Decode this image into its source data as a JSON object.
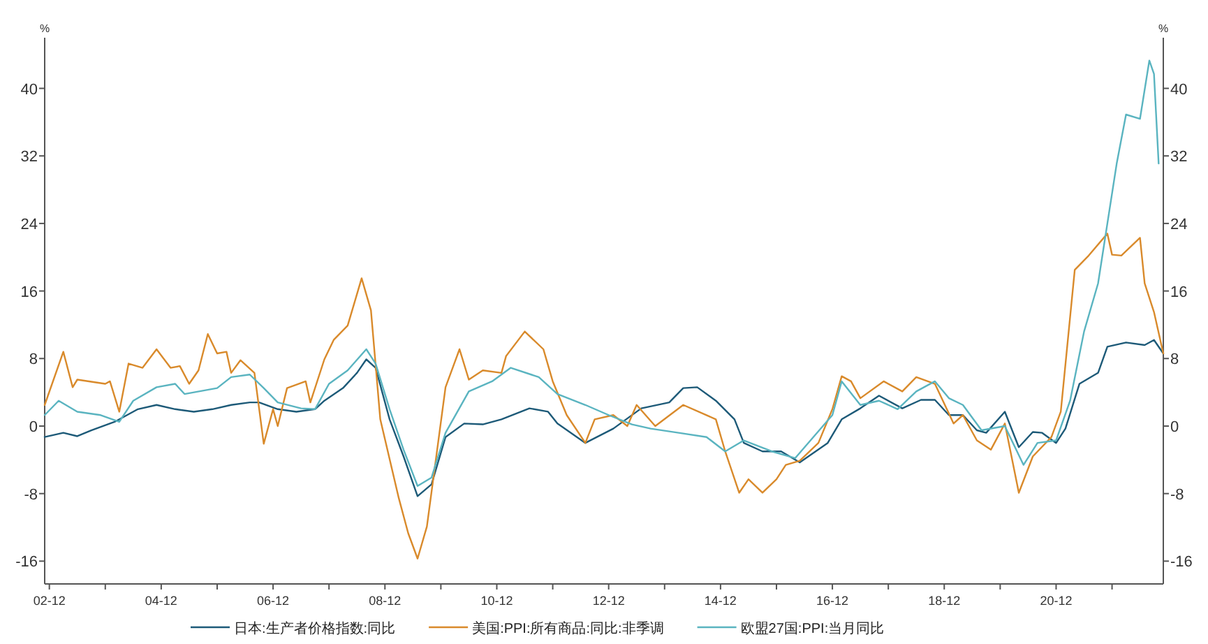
{
  "chart_data": {
    "type": "line",
    "ylabel": "%",
    "y2label": "%",
    "xlim": [
      "2002-11",
      "2022-11"
    ],
    "ylim": [
      -18.7,
      46
    ],
    "y2lim": [
      -18.7,
      46
    ],
    "yticks": [
      -16,
      -8,
      0,
      8,
      16,
      24,
      32,
      40
    ],
    "y2ticks": [
      -16,
      -8,
      0,
      8,
      16,
      24,
      32,
      40
    ],
    "xticks": [
      {
        "value": "2002-12",
        "label": "02-12"
      },
      {
        "value": "2003-12",
        "label": null
      },
      {
        "value": "2004-12",
        "label": "04-12"
      },
      {
        "value": "2005-12",
        "label": null
      },
      {
        "value": "2006-12",
        "label": "06-12"
      },
      {
        "value": "2007-12",
        "label": null
      },
      {
        "value": "2008-12",
        "label": "08-12"
      },
      {
        "value": "2009-12",
        "label": null
      },
      {
        "value": "2010-12",
        "label": "10-12"
      },
      {
        "value": "2011-12",
        "label": null
      },
      {
        "value": "2012-12",
        "label": "12-12"
      },
      {
        "value": "2013-12",
        "label": null
      },
      {
        "value": "2014-12",
        "label": "14-12"
      },
      {
        "value": "2015-12",
        "label": null
      },
      {
        "value": "2016-12",
        "label": "16-12"
      },
      {
        "value": "2017-12",
        "label": null
      },
      {
        "value": "2018-12",
        "label": "18-12"
      },
      {
        "value": "2019-12",
        "label": null
      },
      {
        "value": "2020-12",
        "label": "20-12"
      },
      {
        "value": "2021-12",
        "label": null
      }
    ],
    "grid": false,
    "legend": "bottom",
    "marker": "none",
    "line_style": "solid",
    "series": [
      {
        "name": "日本:生产者价格指数:同比",
        "color": "#1d5a78",
        "x": [
          "2002-11",
          "2003-03",
          "2003-06",
          "2003-09",
          "2004-02",
          "2004-07",
          "2004-11",
          "2005-03",
          "2005-07",
          "2005-11",
          "2006-03",
          "2006-07",
          "2006-09",
          "2007-01",
          "2007-05",
          "2007-09",
          "2007-11",
          "2008-03",
          "2008-06",
          "2008-08",
          "2008-10",
          "2009-01",
          "2009-04",
          "2009-07",
          "2009-10",
          "2010-01",
          "2010-05",
          "2010-09",
          "2011-01",
          "2011-07",
          "2011-11",
          "2012-01",
          "2012-07",
          "2013-01",
          "2013-07",
          "2014-01",
          "2014-04",
          "2014-07",
          "2014-11",
          "2015-03",
          "2015-05",
          "2015-09",
          "2016-01",
          "2016-05",
          "2016-11",
          "2017-02",
          "2017-06",
          "2017-10",
          "2018-03",
          "2018-07",
          "2018-10",
          "2019-01",
          "2019-04",
          "2019-07",
          "2019-09",
          "2020-01",
          "2020-04",
          "2020-07",
          "2020-09",
          "2020-12",
          "2021-02",
          "2021-05",
          "2021-09",
          "2021-11",
          "2022-03",
          "2022-07",
          "2022-09",
          "2022-11"
        ],
        "values": [
          -1.3,
          -0.8,
          -1.2,
          -0.5,
          0.5,
          2.0,
          2.5,
          2.0,
          1.7,
          2.0,
          2.5,
          2.8,
          2.8,
          2.0,
          1.7,
          2.0,
          3.0,
          4.5,
          6.3,
          7.9,
          6.9,
          0.8,
          -3.6,
          -8.3,
          -6.9,
          -1.3,
          0.3,
          0.2,
          0.8,
          2.1,
          1.7,
          0.3,
          -2.0,
          -0.3,
          2.1,
          2.8,
          4.5,
          4.6,
          3.0,
          0.8,
          -2.0,
          -3.0,
          -3.0,
          -4.3,
          -2.0,
          0.8,
          2.1,
          3.6,
          2.1,
          3.1,
          3.1,
          1.3,
          1.3,
          -0.5,
          -0.8,
          1.7,
          -2.5,
          -0.7,
          -0.8,
          -2.0,
          -0.3,
          5.0,
          6.3,
          9.4,
          9.9,
          9.6,
          10.2,
          8.6
        ]
      },
      {
        "name": "美国:PPI:所有商品:同比:非季调",
        "color": "#d98a2b",
        "x": [
          "2002-11",
          "2003-03",
          "2003-05",
          "2003-06",
          "2003-12",
          "2004-01",
          "2004-03",
          "2004-05",
          "2004-08",
          "2004-11",
          "2005-02",
          "2005-04",
          "2005-06",
          "2005-08",
          "2005-10",
          "2005-12",
          "2006-02",
          "2006-03",
          "2006-05",
          "2006-08",
          "2006-10",
          "2006-12",
          "2007-01",
          "2007-03",
          "2007-07",
          "2007-08",
          "2007-11",
          "2008-01",
          "2008-04",
          "2008-07",
          "2008-09",
          "2008-11",
          "2009-03",
          "2009-05",
          "2009-07",
          "2009-09",
          "2010-01",
          "2010-04",
          "2010-06",
          "2010-09",
          "2011-01",
          "2011-02",
          "2011-06",
          "2011-10",
          "2011-12",
          "2012-03",
          "2012-07",
          "2012-09",
          "2013-01",
          "2013-04",
          "2013-06",
          "2013-10",
          "2014-04",
          "2014-11",
          "2015-01",
          "2015-04",
          "2015-06",
          "2015-09",
          "2015-12",
          "2016-02",
          "2016-05",
          "2016-09",
          "2016-12",
          "2017-02",
          "2017-04",
          "2017-06",
          "2017-11",
          "2018-03",
          "2018-06",
          "2018-10",
          "2019-02",
          "2019-04",
          "2019-07",
          "2019-10",
          "2020-01",
          "2020-04",
          "2020-07",
          "2020-11",
          "2021-01",
          "2021-04",
          "2021-07",
          "2021-11",
          "2021-12",
          "2022-02",
          "2022-06",
          "2022-07",
          "2022-09",
          "2022-11"
        ],
        "values": [
          2.5,
          8.8,
          4.6,
          5.5,
          5.0,
          5.3,
          1.7,
          7.4,
          6.9,
          9.1,
          6.9,
          7.1,
          5.0,
          6.6,
          10.9,
          8.6,
          8.8,
          6.3,
          7.8,
          6.3,
          -2.1,
          2.0,
          0.0,
          4.5,
          5.3,
          2.8,
          7.9,
          10.2,
          11.9,
          17.5,
          13.7,
          0.8,
          -8.6,
          -12.7,
          -15.7,
          -11.9,
          4.6,
          9.1,
          5.5,
          6.6,
          6.3,
          8.3,
          11.2,
          9.1,
          5.3,
          1.3,
          -2.0,
          0.8,
          1.3,
          0.0,
          2.5,
          0.0,
          2.5,
          0.8,
          -3.0,
          -7.9,
          -6.3,
          -7.9,
          -6.3,
          -4.6,
          -4.1,
          -2.0,
          2.0,
          5.9,
          5.3,
          3.3,
          5.3,
          4.1,
          5.8,
          5.0,
          0.3,
          1.3,
          -1.7,
          -2.8,
          0.3,
          -7.9,
          -3.6,
          -1.3,
          1.7,
          18.5,
          20.2,
          22.8,
          20.3,
          20.2,
          22.3,
          16.9,
          13.5,
          8.6
        ]
      },
      {
        "name": "欧盟27国:PPI:当月同比",
        "color": "#5ab4c0",
        "x": [
          "2002-11",
          "2003-02",
          "2003-06",
          "2003-11",
          "2004-03",
          "2004-06",
          "2004-11",
          "2005-03",
          "2005-05",
          "2005-12",
          "2006-03",
          "2006-07",
          "2006-10",
          "2007-01",
          "2007-06",
          "2007-09",
          "2007-12",
          "2008-04",
          "2008-08",
          "2008-10",
          "2009-01",
          "2009-04",
          "2009-07",
          "2009-10",
          "2010-01",
          "2010-06",
          "2010-11",
          "2011-03",
          "2011-09",
          "2012-01",
          "2012-07",
          "2012-12",
          "2013-05",
          "2013-09",
          "2014-03",
          "2014-09",
          "2015-01",
          "2015-05",
          "2015-11",
          "2016-04",
          "2016-12",
          "2017-02",
          "2017-06",
          "2017-10",
          "2018-02",
          "2018-06",
          "2018-10",
          "2019-01",
          "2019-04",
          "2019-08",
          "2020-01",
          "2020-05",
          "2020-08",
          "2020-12",
          "2021-03",
          "2021-06",
          "2021-09",
          "2021-11",
          "2022-01",
          "2022-03",
          "2022-06",
          "2022-08",
          "2022-09",
          "2022-10"
        ],
        "values": [
          1.3,
          3.0,
          1.7,
          1.3,
          0.5,
          3.0,
          4.6,
          5.0,
          3.8,
          4.5,
          5.8,
          6.1,
          4.5,
          2.8,
          2.1,
          2.0,
          5.0,
          6.6,
          9.1,
          7.4,
          2.0,
          -2.8,
          -7.1,
          -6.1,
          -0.8,
          4.1,
          5.3,
          6.9,
          5.8,
          3.8,
          2.5,
          1.3,
          0.2,
          -0.3,
          -0.8,
          -1.3,
          -3.0,
          -1.7,
          -3.0,
          -3.8,
          1.3,
          5.3,
          2.5,
          3.0,
          2.0,
          4.1,
          5.3,
          3.3,
          2.5,
          -0.5,
          0.0,
          -4.6,
          -2.0,
          -1.7,
          3.0,
          11.2,
          16.9,
          24.0,
          31.1,
          36.9,
          36.4,
          43.3,
          41.7,
          31.1
        ]
      }
    ]
  }
}
